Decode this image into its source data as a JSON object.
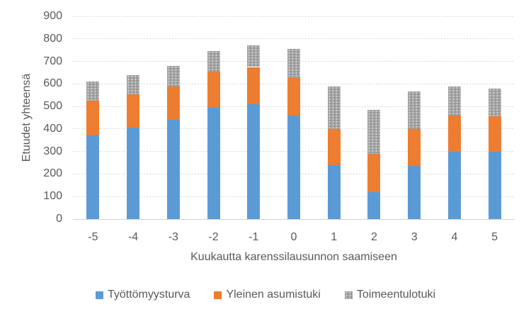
{
  "chart_data": {
    "type": "bar",
    "stacked": true,
    "title": "",
    "xlabel": "Kuukautta karenssilausunnon saamiseen",
    "ylabel": "Etuudet yhteensä",
    "categories": [
      "-5",
      "-4",
      "-3",
      "-2",
      "-1",
      "0",
      "1",
      "2",
      "3",
      "4",
      "5"
    ],
    "series": [
      {
        "name": "Työttömyysturva",
        "color": "#5B9BD5",
        "pattern": "solid",
        "values": [
          370,
          405,
          440,
          495,
          510,
          460,
          240,
          120,
          235,
          300,
          300
        ]
      },
      {
        "name": "Yleinen asumistuki",
        "color": "#ED7D31",
        "pattern": "solid",
        "values": [
          155,
          150,
          150,
          160,
          165,
          165,
          160,
          170,
          165,
          160,
          155
        ]
      },
      {
        "name": "Toimeentulotuki",
        "color": "#A5A5A5",
        "pattern": "speckled",
        "values": [
          85,
          85,
          90,
          90,
          95,
          130,
          190,
          195,
          165,
          130,
          125
        ]
      }
    ],
    "stack_totals": [
      610,
      640,
      680,
      745,
      770,
      755,
      590,
      485,
      565,
      590,
      580
    ],
    "ylim": [
      0,
      900
    ],
    "ytick_interval": 100,
    "yticks": [
      "0",
      "100",
      "200",
      "300",
      "400",
      "500",
      "600",
      "700",
      "800",
      "900"
    ],
    "grid": true,
    "gridline_style": "dashed",
    "legend_position": "bottom",
    "style": {
      "text_color": "#595959",
      "gridline_color": "#D9D9D9",
      "background": "#FFFFFF"
    }
  }
}
